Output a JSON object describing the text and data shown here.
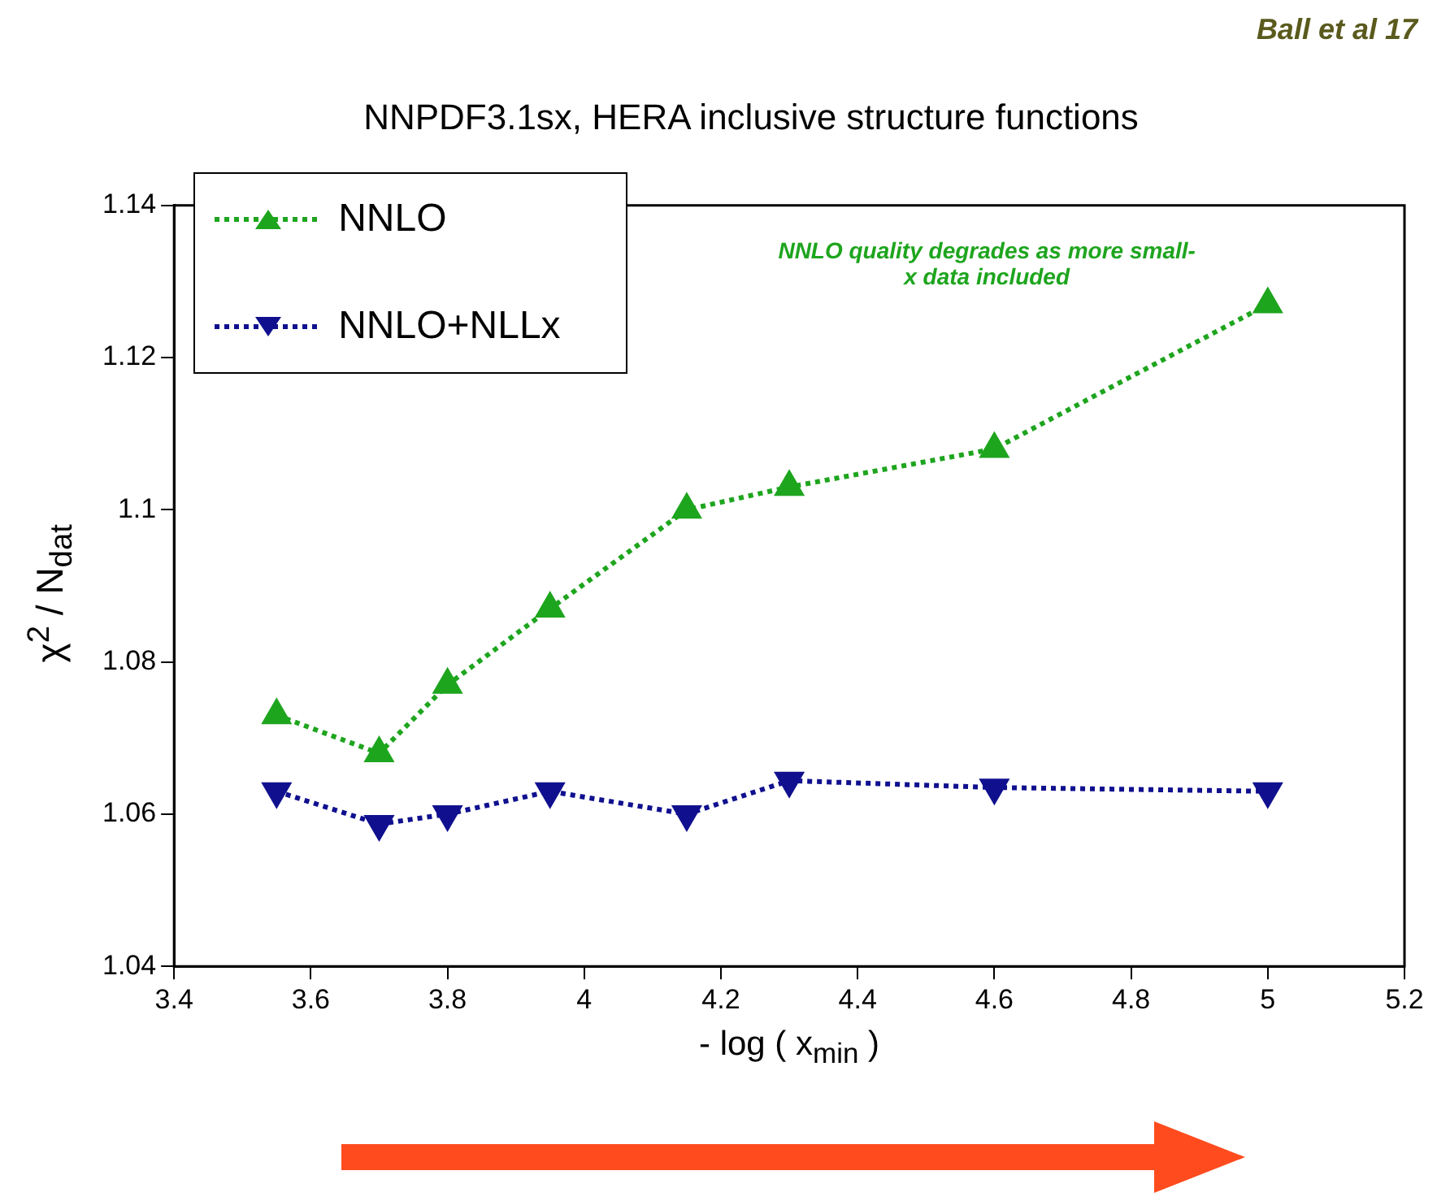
{
  "chart_data": {
    "type": "line",
    "title": "NNPDF3.1sx, HERA inclusive structure functions",
    "xlabel": "- log ( x$_{min}$ )",
    "ylabel": "χ$^{2}$ / N$_{dat}$",
    "x": [
      3.55,
      3.7,
      3.8,
      3.95,
      4.15,
      4.3,
      4.6,
      5.0
    ],
    "series": [
      {
        "name": "NNLO",
        "color": "#1ea51e",
        "values": [
          1.073,
          1.068,
          1.077,
          1.087,
          1.1,
          1.103,
          1.108,
          1.127
        ]
      },
      {
        "name": "NNLO+NLLx",
        "color": "#10108f",
        "values": [
          1.063,
          1.0587,
          1.06,
          1.063,
          1.06,
          1.0644,
          1.0635,
          1.063
        ]
      }
    ],
    "xlim": [
      3.4,
      5.2
    ],
    "xticks": [
      3.4,
      3.6,
      3.8,
      4,
      4.2,
      4.4,
      4.6,
      4.8,
      5,
      5.2
    ],
    "ylim": [
      1.04,
      1.14
    ],
    "yticks": [
      1.04,
      1.06,
      1.08,
      1.1,
      1.12,
      1.14
    ],
    "marker": "triangle",
    "line_style": "dotted",
    "legend": "top left",
    "grid": false,
    "annotations": [
      "NNLO quality degrades as more small-x data included",
      "Ball et al 17"
    ]
  }
}
